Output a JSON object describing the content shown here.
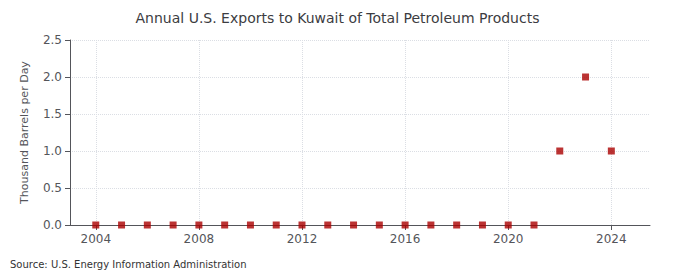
{
  "chart_data": {
    "type": "scatter",
    "title": "Annual U.S. Exports to Kuwait of Total Petroleum Products",
    "ylabel": "Thousand Barrels per Day",
    "source": "Source: U.S. Energy Information Administration",
    "x": [
      2004,
      2005,
      2006,
      2007,
      2008,
      2009,
      2010,
      2011,
      2012,
      2013,
      2014,
      2015,
      2016,
      2017,
      2018,
      2019,
      2020,
      2021,
      2022,
      2023,
      2024
    ],
    "values": [
      0.0,
      0.0,
      0.0,
      0.0,
      0.0,
      0.0,
      0.0,
      0.0,
      0.0,
      0.0,
      0.0,
      0.0,
      0.0,
      0.0,
      0.0,
      0.0,
      0.0,
      0.0,
      1.0,
      2.0,
      1.0
    ],
    "color": "#aa0000",
    "marker": "square",
    "xlim": [
      2003.0,
      2025.5
    ],
    "xticks": [
      2004,
      2008,
      2012,
      2016,
      2020,
      2024
    ],
    "ylim": [
      0.0,
      2.5
    ],
    "yticks": [
      {
        "value": 0.0,
        "label": "0.0"
      },
      0.5,
      {
        "value": 1.0,
        "label": "1.0"
      },
      1.5,
      {
        "value": 2.0,
        "label": "2.0"
      },
      2.5
    ],
    "grid": true
  }
}
